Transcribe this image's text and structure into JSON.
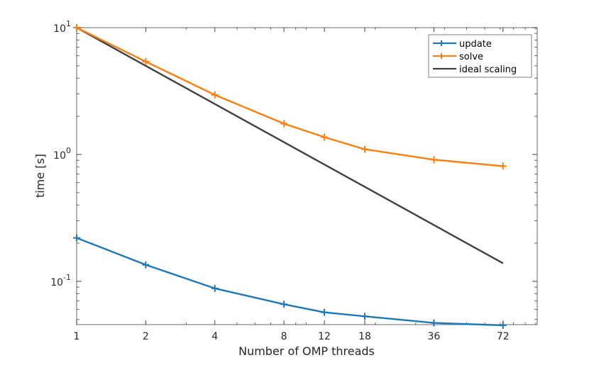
{
  "chart_data": {
    "type": "line",
    "title": "",
    "xlabel": "Number of OMP threads",
    "ylabel": "time [s]",
    "xscale": "log",
    "yscale": "log",
    "xlim": [
      1,
      101.5
    ],
    "ylim": [
      0.0456,
      10
    ],
    "x": [
      1,
      2,
      4,
      8,
      12,
      18,
      36,
      72
    ],
    "xtick_labels": [
      "1",
      "2",
      "4",
      "8",
      "12",
      "18",
      "36",
      "72"
    ],
    "ytick_labels": [
      {
        "base": "10",
        "exp": "1",
        "value": 10
      },
      {
        "base": "10",
        "exp": "0",
        "value": 1
      },
      {
        "base": "10",
        "exp": "-1",
        "value": 0.1
      }
    ],
    "series": [
      {
        "name": "update",
        "color": "#1f77b4",
        "marker": "+",
        "values": [
          0.22,
          0.135,
          0.088,
          0.066,
          0.057,
          0.053,
          0.047,
          0.045
        ]
      },
      {
        "name": "solve",
        "color": "#ff7f0e",
        "marker": "+",
        "values": [
          10,
          5.4,
          2.95,
          1.75,
          1.37,
          1.1,
          0.91,
          0.81
        ]
      },
      {
        "name": "ideal scaling",
        "color": "#404040",
        "marker": "none",
        "x": [
          1,
          72
        ],
        "values": [
          10,
          0.139
        ]
      }
    ],
    "legend": {
      "position": "top-right"
    },
    "grid": false
  }
}
